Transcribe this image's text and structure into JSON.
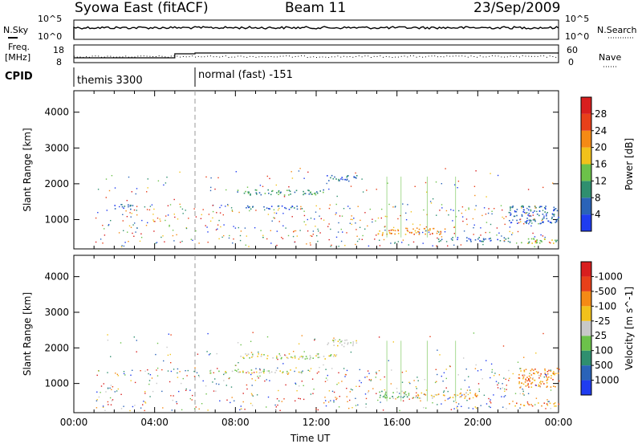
{
  "header": {
    "title": "Syowa East (fitACF)",
    "beam": "Beam 11",
    "date": "23/Sep/2009"
  },
  "left_labels": {
    "nsky": "N.Sky",
    "freq_line1": "Freq.",
    "freq_line2": "[MHz]",
    "cpid": "CPID"
  },
  "right_labels": {
    "nsearch": "N.Search",
    "nave": "Nave"
  },
  "noise_axis": {
    "left_top": "10^5",
    "left_bottom": "10^0",
    "right_top": "10^5",
    "right_bottom": "10^0"
  },
  "freq_axis": {
    "left_top": "18",
    "left_bottom": "8",
    "right_top": "60",
    "right_bottom": "0"
  },
  "cpid": {
    "segment1": "themis 3300",
    "segment2": "normal (fast) -151",
    "change_hour": 6.0
  },
  "chart_data": [
    {
      "type": "heatmap",
      "panel": "power",
      "ylabel": "Slant Range [km]",
      "ylim": [
        180,
        4600
      ],
      "yticks": [
        1000,
        2000,
        3000,
        4000
      ],
      "xlim": [
        0,
        24
      ],
      "colorbar": {
        "label": "Power [dB]",
        "ticks": [
          "4",
          "8",
          "12",
          "16",
          "20",
          "24",
          "28"
        ],
        "colors": [
          "#1f3cf0",
          "#2a63b8",
          "#2f8f6f",
          "#6cc24a",
          "#f2c21b",
          "#f58a15",
          "#e8401a",
          "#d81e1e"
        ]
      },
      "regions": [
        {
          "x0": 8.0,
          "x1": 12.5,
          "y0": 1700,
          "y1": 1850,
          "level": 2
        },
        {
          "x0": 12.5,
          "x1": 14.0,
          "y0": 2050,
          "y1": 2250,
          "level": 1
        },
        {
          "x0": 8.5,
          "x1": 11.5,
          "y0": 1300,
          "y1": 1400,
          "level": 1
        },
        {
          "x0": 15.0,
          "x1": 18.5,
          "y0": 600,
          "y1": 780,
          "level": 5
        },
        {
          "x0": 18.0,
          "x1": 21.5,
          "y0": 400,
          "y1": 520,
          "level": 1
        },
        {
          "x0": 22.0,
          "x1": 24.0,
          "y0": 350,
          "y1": 500,
          "level": 3
        },
        {
          "x0": 21.5,
          "x1": 24.0,
          "y0": 900,
          "y1": 1400,
          "level": 1
        },
        {
          "x0": 2.0,
          "x1": 3.0,
          "y0": 1300,
          "y1": 1450,
          "level": 1
        }
      ]
    },
    {
      "type": "heatmap",
      "panel": "velocity",
      "ylabel": "Slant Range [km]",
      "ylim": [
        180,
        4600
      ],
      "yticks": [
        1000,
        2000,
        3000,
        4000
      ],
      "xlim": [
        0,
        24
      ],
      "xlabel": "Time UT",
      "xticks": [
        "00:00",
        "04:00",
        "08:00",
        "12:00",
        "16:00",
        "20:00",
        "00:00"
      ],
      "colorbar": {
        "label": "Velocity [m s^-1]",
        "ticks": [
          "1000",
          "500",
          "100",
          "25",
          "-25",
          "-100",
          "-500",
          "-1000"
        ],
        "colors": [
          "#1f3cf0",
          "#2a63b8",
          "#2f8f6f",
          "#6cc24a",
          "#c8c8c8",
          "#f2c21b",
          "#f58a15",
          "#e8401a",
          "#d81e1e"
        ]
      },
      "regions": [
        {
          "x0": 8.0,
          "x1": 13.0,
          "y0": 1700,
          "y1": 1850,
          "level": 4
        },
        {
          "x0": 12.5,
          "x1": 14.0,
          "y0": 2050,
          "y1": 2250,
          "level": 4
        },
        {
          "x0": 6.5,
          "x1": 11.5,
          "y0": 1300,
          "y1": 1400,
          "level": 4
        },
        {
          "x0": 15.0,
          "x1": 17.0,
          "y0": 600,
          "y1": 800,
          "level": 3
        },
        {
          "x0": 17.0,
          "x1": 20.0,
          "y0": 600,
          "y1": 760,
          "level": 5
        },
        {
          "x0": 21.5,
          "x1": 24.0,
          "y0": 380,
          "y1": 480,
          "level": 6
        },
        {
          "x0": 22.0,
          "x1": 24.0,
          "y0": 900,
          "y1": 1450,
          "level": 6
        }
      ]
    }
  ]
}
